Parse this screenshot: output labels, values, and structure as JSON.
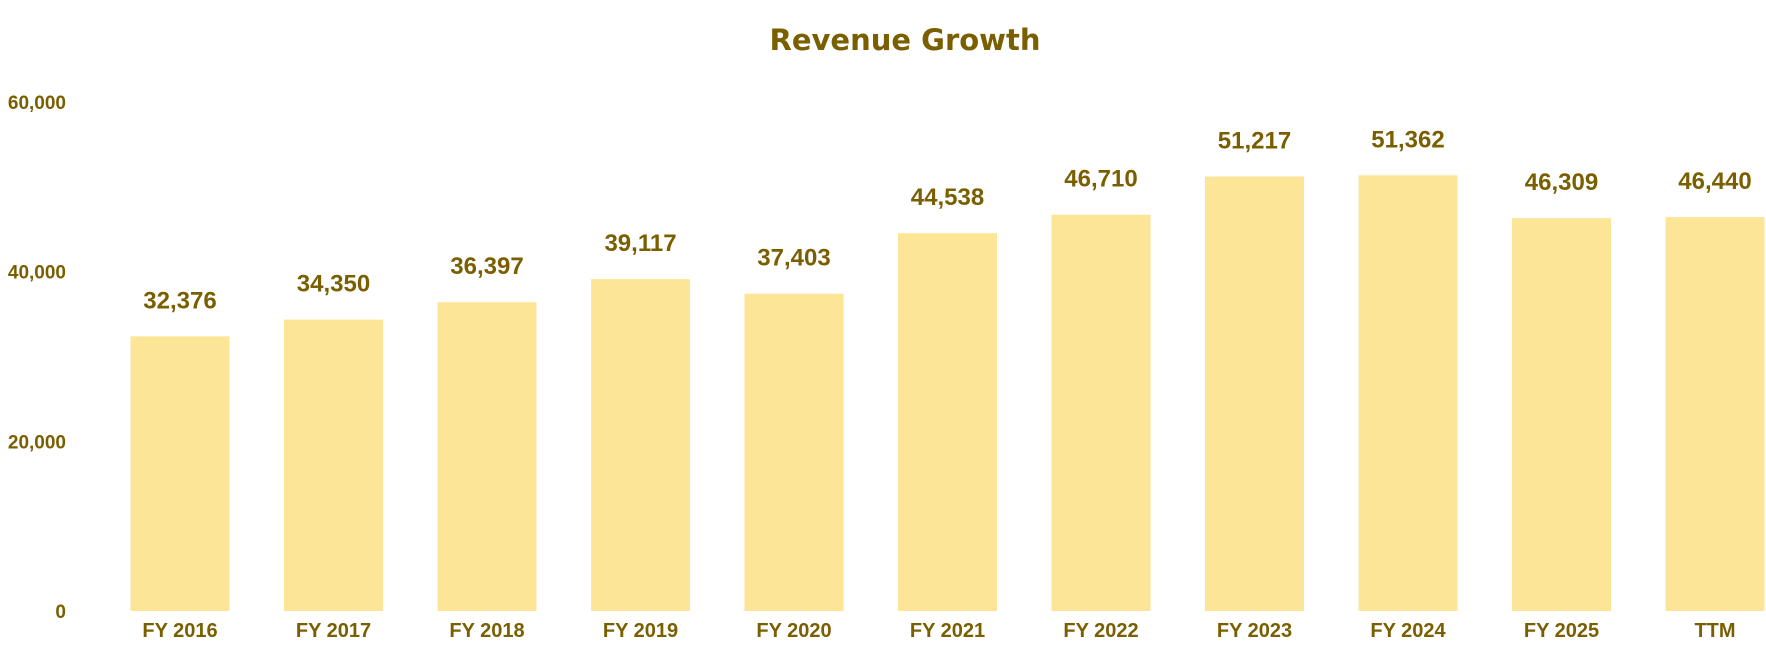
{
  "chart_data": {
    "type": "bar",
    "title": "Revenue Growth",
    "xlabel": "",
    "ylabel": "",
    "categories": [
      "FY 2016",
      "FY 2017",
      "FY 2018",
      "FY 2019",
      "FY 2020",
      "FY 2021",
      "FY 2022",
      "FY 2023",
      "FY 2024",
      "FY 2025",
      "TTM"
    ],
    "values": [
      32376,
      34350,
      36397,
      39117,
      37403,
      44538,
      46710,
      51217,
      51362,
      46309,
      46440
    ],
    "data_labels": [
      "32,376",
      "34,350",
      "36,397",
      "39,117",
      "37,403",
      "44,538",
      "46,710",
      "51,217",
      "51,362",
      "46,309",
      "46,440"
    ],
    "ylim": [
      0,
      60000
    ],
    "y_ticks": [
      0,
      20000,
      40000,
      60000
    ],
    "y_tick_labels": [
      "0",
      "20,000",
      "40,000",
      "60,000"
    ],
    "grid": false,
    "legend": "none",
    "colors": {
      "bar": "#FDE598",
      "text": "#7A5F00"
    }
  }
}
